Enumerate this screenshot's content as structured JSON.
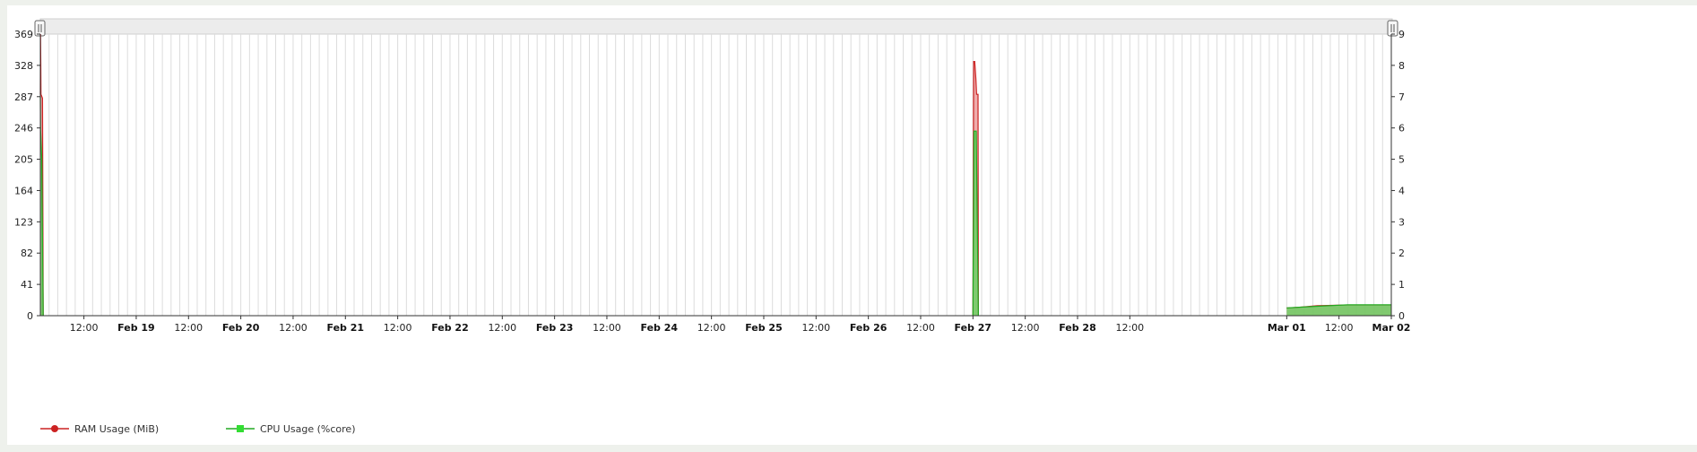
{
  "chart_data": {
    "type": "area",
    "x_range": [
      "2024-02-18T02:00",
      "2024-03-02T00:00"
    ],
    "x_ticks": [
      {
        "t": "2024-02-18T12:00",
        "label": "12:00",
        "bold": false
      },
      {
        "t": "2024-02-19T00:00",
        "label": "Feb 19",
        "bold": true
      },
      {
        "t": "2024-02-19T12:00",
        "label": "12:00",
        "bold": false
      },
      {
        "t": "2024-02-20T00:00",
        "label": "Feb 20",
        "bold": true
      },
      {
        "t": "2024-02-20T12:00",
        "label": "12:00",
        "bold": false
      },
      {
        "t": "2024-02-21T00:00",
        "label": "Feb 21",
        "bold": true
      },
      {
        "t": "2024-02-21T12:00",
        "label": "12:00",
        "bold": false
      },
      {
        "t": "2024-02-22T00:00",
        "label": "Feb 22",
        "bold": true
      },
      {
        "t": "2024-02-22T12:00",
        "label": "12:00",
        "bold": false
      },
      {
        "t": "2024-02-23T00:00",
        "label": "Feb 23",
        "bold": true
      },
      {
        "t": "2024-02-23T12:00",
        "label": "12:00",
        "bold": false
      },
      {
        "t": "2024-02-24T00:00",
        "label": "Feb 24",
        "bold": true
      },
      {
        "t": "2024-02-24T12:00",
        "label": "12:00",
        "bold": false
      },
      {
        "t": "2024-02-25T00:00",
        "label": "Feb 25",
        "bold": true
      },
      {
        "t": "2024-02-25T12:00",
        "label": "12:00",
        "bold": false
      },
      {
        "t": "2024-02-26T00:00",
        "label": "Feb 26",
        "bold": true
      },
      {
        "t": "2024-02-26T12:00",
        "label": "12:00",
        "bold": false
      },
      {
        "t": "2024-02-27T00:00",
        "label": "Feb 27",
        "bold": true
      },
      {
        "t": "2024-02-27T12:00",
        "label": "12:00",
        "bold": false
      },
      {
        "t": "2024-02-28T00:00",
        "label": "Feb 28",
        "bold": true
      },
      {
        "t": "2024-02-28T12:00",
        "label": "12:00",
        "bold": false
      },
      {
        "t": "2024-03-01T00:00",
        "label": "Mar 01",
        "bold": true
      },
      {
        "t": "2024-03-01T12:00",
        "label": "12:00",
        "bold": false
      },
      {
        "t": "2024-03-02T00:00",
        "label": "Mar 02",
        "bold": true
      }
    ],
    "y_left": {
      "range": [
        0,
        369
      ],
      "ticks": [
        0,
        41,
        82,
        123,
        164,
        205,
        246,
        287,
        328,
        369
      ]
    },
    "y_right": {
      "range": [
        0,
        9
      ],
      "ticks": [
        0,
        1,
        2,
        3,
        4,
        5,
        6,
        7,
        8,
        9
      ]
    },
    "grid": true,
    "legend": {
      "placement": "bottom-left"
    },
    "series": [
      {
        "name": "RAM Usage (MiB)",
        "axis": "left",
        "color": "#cc2222",
        "fill": "#e89090",
        "segments": [
          [
            [
              "2024-02-18T02:00",
              290
            ],
            [
              "2024-02-18T02:03",
              369
            ],
            [
              "2024-02-18T02:06",
              330
            ],
            [
              "2024-02-18T02:09",
              290
            ],
            [
              "2024-02-18T02:30",
              285
            ],
            [
              "2024-02-18T02:40",
              0
            ]
          ],
          [
            [
              "2024-02-27T00:00",
              0
            ],
            [
              "2024-02-27T00:10",
              333
            ],
            [
              "2024-02-27T00:25",
              333
            ],
            [
              "2024-02-27T00:40",
              310
            ],
            [
              "2024-02-27T00:50",
              290
            ],
            [
              "2024-02-27T01:10",
              290
            ],
            [
              "2024-02-27T01:15",
              0
            ]
          ],
          [
            [
              "2024-03-01T00:00",
              10
            ],
            [
              "2024-03-01T03:00",
              11
            ],
            [
              "2024-03-01T07:00",
              13
            ],
            [
              "2024-03-01T14:00",
              14
            ],
            [
              "2024-03-02T00:00",
              14
            ]
          ]
        ]
      },
      {
        "name": "CPU Usage (%core)",
        "axis": "right",
        "color": "#22aa22",
        "fill": "#5bd35b",
        "segments": [
          [
            [
              "2024-02-18T02:00",
              7.0
            ],
            [
              "2024-02-18T02:03",
              6.0
            ],
            [
              "2024-02-18T02:20",
              5.0
            ],
            [
              "2024-02-18T02:40",
              0
            ]
          ],
          [
            [
              "2024-02-27T00:00",
              0
            ],
            [
              "2024-02-27T00:15",
              5.9
            ],
            [
              "2024-02-27T00:45",
              5.9
            ],
            [
              "2024-02-27T01:15",
              0
            ]
          ],
          [
            [
              "2024-03-01T00:00",
              0.25
            ],
            [
              "2024-03-01T07:00",
              0.3
            ],
            [
              "2024-03-01T14:00",
              0.35
            ],
            [
              "2024-03-02T00:00",
              0.35
            ]
          ]
        ]
      }
    ]
  },
  "colors": {
    "grid": "#dcdcdc",
    "navigator": "#ececec",
    "background": "#ffffff"
  }
}
